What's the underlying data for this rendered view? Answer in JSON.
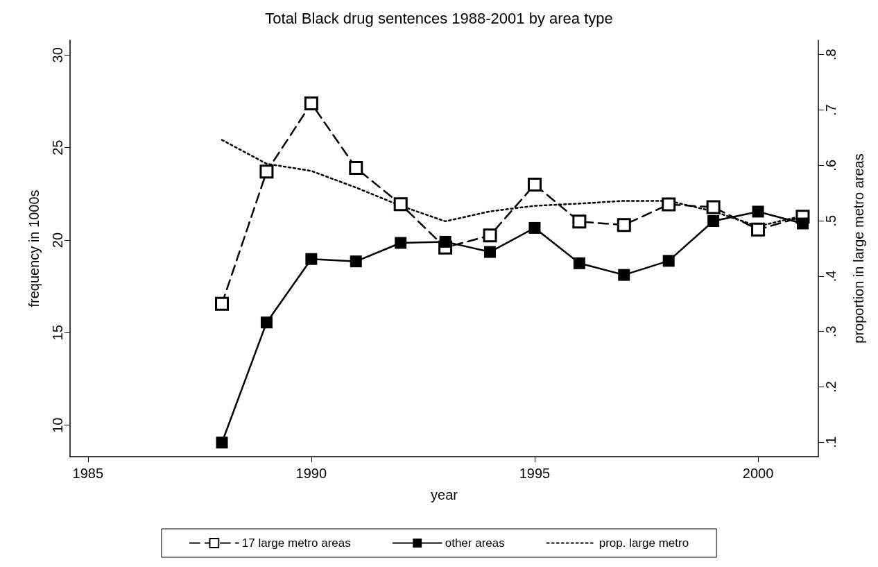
{
  "chart_data": {
    "type": "line",
    "title": "Total Black drug sentences 1988-2001 by area type",
    "xlabel": "year",
    "ylabel": "frequency in 1000s",
    "y2label": "proportion in large metro areas",
    "x": [
      1988,
      1989,
      1990,
      1991,
      1992,
      1993,
      1994,
      1995,
      1996,
      1997,
      1998,
      1999,
      2000,
      2001
    ],
    "series": [
      {
        "name": "17 large metro areas",
        "color": "#000000",
        "marker": "square",
        "line_style": "dashed",
        "values": [
          16.56,
          23.7,
          27.39,
          23.9,
          21.94,
          19.6,
          20.25,
          23.0,
          21.0,
          20.82,
          21.93,
          21.78,
          20.57,
          21.27
        ]
      },
      {
        "name": "other areas",
        "color": "#000000",
        "marker": "square",
        "line_style": "solid",
        "values": [
          9.06,
          15.55,
          18.98,
          18.85,
          19.85,
          19.91,
          19.36,
          20.66,
          18.75,
          18.12,
          18.88,
          21.03,
          21.54,
          20.9
        ]
      },
      {
        "name": "prop. large metro",
        "color": "#000000",
        "marker": "none",
        "line_style": "dotted",
        "axis": "y2",
        "values": [
          0.646,
          0.603,
          0.59,
          0.56,
          0.527,
          0.499,
          0.517,
          0.527,
          0.531,
          0.536,
          0.536,
          0.517,
          0.49,
          0.509
        ]
      }
    ],
    "xlim": [
      1984.6,
      2001.35
    ],
    "xticks": [
      1985,
      1990,
      1995,
      2000
    ],
    "ylim": [
      8.3,
      30.8
    ],
    "yticks": [
      10,
      15,
      20,
      25,
      30
    ],
    "y2lim": [
      0.074,
      0.826
    ],
    "y2ticks": [
      {
        "value": 0.1,
        "label": ".1"
      },
      {
        "value": 0.2,
        "label": ".2"
      },
      {
        "value": 0.3,
        "label": ".3"
      },
      {
        "value": 0.4,
        "label": ".4"
      },
      {
        "value": 0.5,
        "label": ".5"
      },
      {
        "value": 0.6,
        "label": ".6"
      },
      {
        "value": 0.7,
        "label": ".7"
      },
      {
        "value": 0.8,
        "label": ".8"
      }
    ],
    "grid": false,
    "legend": "bottom"
  }
}
